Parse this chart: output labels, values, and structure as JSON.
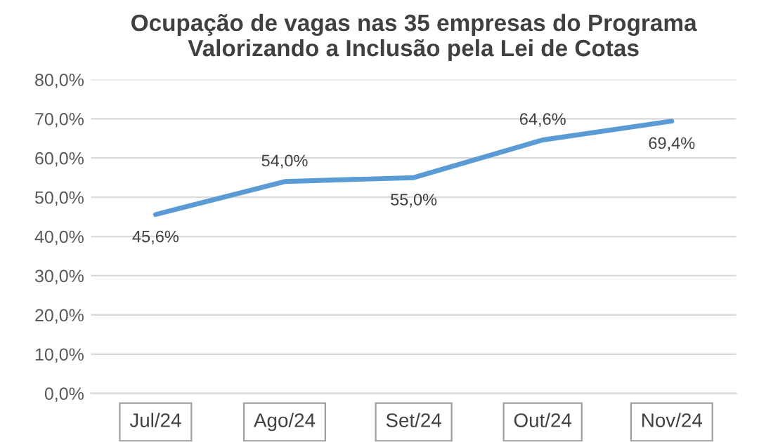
{
  "chart_data": {
    "type": "line",
    "title": "Ocupação de vagas nas 35 empresas do Programa\nValorizando a Inclusão pela Lei de Cotas",
    "categories": [
      "Jul/24",
      "Ago/24",
      "Set/24",
      "Out/24",
      "Nov/24"
    ],
    "series": [
      {
        "color": "#5b9bd5",
        "values": [
          45.6,
          54.0,
          55.0,
          64.6,
          69.4
        ],
        "value_labels": [
          "45,6%",
          "54,0%",
          "55,0%",
          "64,6%",
          "69,4%"
        ]
      }
    ],
    "ylim": [
      0,
      80
    ],
    "yticks": [
      {
        "value": 0,
        "label": "0,0%"
      },
      {
        "value": 10,
        "label": "10,0%"
      },
      {
        "value": 20,
        "label": "20,0%"
      },
      {
        "value": 30,
        "label": "30,0%"
      },
      {
        "value": 40,
        "label": "40,0%"
      },
      {
        "value": 50,
        "label": "50,0%"
      },
      {
        "value": 60,
        "label": "60,0%"
      },
      {
        "value": 70,
        "label": "70,0%"
      },
      {
        "value": 80,
        "label": "80,0%"
      }
    ],
    "grid": "y",
    "legend": false,
    "marker": "none",
    "line_style": "solid"
  }
}
